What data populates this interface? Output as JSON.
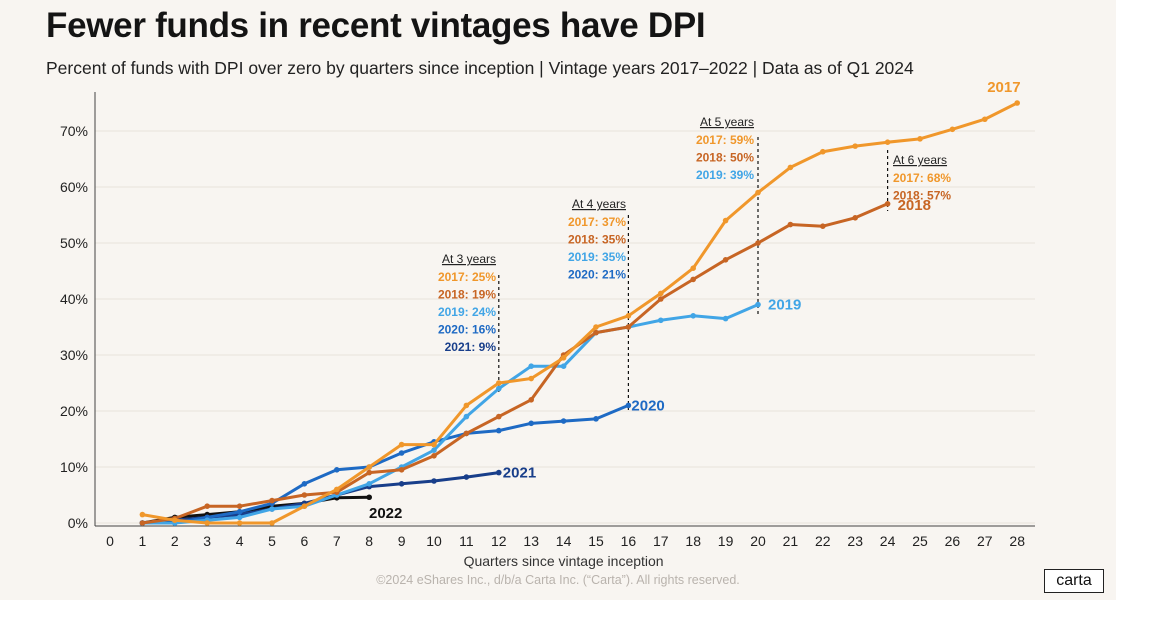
{
  "title": "Fewer funds in recent vintages have DPI",
  "subtitle": "Percent of funds with DPI over zero by quarters since inception | Vintage years 2017–2022 | Data as of Q1 2024",
  "footer": "©2024 eShares Inc., d/b/a Carta Inc. (“Carta”). All rights reserved.",
  "logo": "carta",
  "colors": {
    "2017": "#f0972b",
    "2018": "#c76524",
    "2019": "#41a5e6",
    "2020": "#1e6ac4",
    "2021": "#183e8a",
    "2022": "#111111",
    "background": "#f8f5f1",
    "grid": "#e9e3dc"
  },
  "chart_data": {
    "type": "line",
    "xlabel": "Quarters since vintage inception",
    "ylabel": "",
    "xlim": [
      0,
      28
    ],
    "ylim": [
      0,
      75
    ],
    "x_ticks": [
      "0",
      "1",
      "2",
      "3",
      "4",
      "5",
      "6",
      "7",
      "8",
      "9",
      "10",
      "11",
      "12",
      "13",
      "14",
      "15",
      "16",
      "17",
      "18",
      "19",
      "20",
      "21",
      "22",
      "23",
      "24",
      "25",
      "26",
      "27",
      "28"
    ],
    "y_ticks": [
      {
        "value": 0,
        "label": "0%"
      },
      {
        "value": 10,
        "label": "10%"
      },
      {
        "value": 20,
        "label": "20%"
      },
      {
        "value": 30,
        "label": "30%"
      },
      {
        "value": 40,
        "label": "40%"
      },
      {
        "value": 50,
        "label": "50%"
      },
      {
        "value": 60,
        "label": "60%"
      },
      {
        "value": 70,
        "label": "70%"
      }
    ],
    "grid": true,
    "series": [
      {
        "name": "2017",
        "color": "#f0972b",
        "x": [
          1,
          2,
          3,
          4,
          5,
          6,
          7,
          8,
          9,
          10,
          11,
          12,
          13,
          14,
          15,
          16,
          17,
          18,
          19,
          20,
          21,
          22,
          23,
          24,
          25,
          26,
          27,
          28
        ],
        "values": [
          1.5,
          0.5,
          0,
          0,
          0,
          3,
          6,
          10,
          14,
          14,
          21,
          25,
          25.8,
          29.5,
          35,
          37,
          41,
          45.5,
          54,
          59,
          63.5,
          66.3,
          67.3,
          68,
          68.6,
          70.3,
          72.1,
          75
        ]
      },
      {
        "name": "2018",
        "color": "#c76524",
        "x": [
          1,
          2,
          3,
          4,
          5,
          6,
          7,
          8,
          9,
          10,
          11,
          12,
          13,
          14,
          15,
          16,
          17,
          18,
          19,
          20,
          21,
          22,
          23,
          24
        ],
        "values": [
          0,
          0.8,
          3,
          3,
          4,
          5,
          5.5,
          9,
          9.5,
          12,
          16,
          19,
          22,
          30,
          34,
          35,
          40,
          43.5,
          47,
          50,
          53.3,
          53,
          54.5,
          57
        ]
      },
      {
        "name": "2019",
        "color": "#41a5e6",
        "x": [
          1,
          2,
          3,
          4,
          5,
          6,
          7,
          8,
          9,
          10,
          11,
          12,
          13,
          14,
          15,
          16,
          17,
          18,
          19,
          20
        ],
        "values": [
          0,
          0,
          0.5,
          1,
          2.5,
          3,
          5,
          7,
          10,
          13,
          19,
          24,
          28,
          28,
          34,
          35,
          36.2,
          37,
          36.5,
          39
        ]
      },
      {
        "name": "2020",
        "color": "#1e6ac4",
        "x": [
          1,
          2,
          3,
          4,
          5,
          6,
          7,
          8,
          9,
          10,
          11,
          12,
          13,
          14,
          15,
          16
        ],
        "values": [
          0,
          0,
          1,
          2,
          3.5,
          7,
          9.5,
          10,
          12.5,
          14.5,
          16,
          16.5,
          17.8,
          18.2,
          18.6,
          21
        ]
      },
      {
        "name": "2021",
        "color": "#183e8a",
        "x": [
          1,
          2,
          3,
          4,
          5,
          6,
          7,
          8,
          9,
          10,
          11,
          12
        ],
        "values": [
          0,
          0.5,
          1,
          1.5,
          2.5,
          3.5,
          5,
          6.5,
          7,
          7.5,
          8.2,
          9
        ]
      },
      {
        "name": "2022",
        "color": "#111111",
        "x": [
          1,
          2,
          3,
          4,
          5,
          6,
          7,
          8
        ],
        "values": [
          0,
          1,
          1.5,
          2,
          3,
          3.5,
          4.5,
          4.6
        ]
      }
    ],
    "series_labels": [
      "2017",
      "2018",
      "2019",
      "2020",
      "2021",
      "2022"
    ],
    "annotations": [
      {
        "x": 12,
        "heading": "At 3 years",
        "lines": [
          {
            "text": "2017: 25%",
            "series": "2017"
          },
          {
            "text": "2018: 19%",
            "series": "2018"
          },
          {
            "text": "2019: 24%",
            "series": "2019"
          },
          {
            "text": "2020: 16%",
            "series": "2020"
          },
          {
            "text": "2021: 9%",
            "series": "2021"
          }
        ]
      },
      {
        "x": 16,
        "heading": "At 4 years",
        "lines": [
          {
            "text": "2017: 37%",
            "series": "2017"
          },
          {
            "text": "2018: 35%",
            "series": "2018"
          },
          {
            "text": "2019: 35%",
            "series": "2019"
          },
          {
            "text": "2020: 21%",
            "series": "2020"
          }
        ]
      },
      {
        "x": 20,
        "heading": "At 5 years",
        "lines": [
          {
            "text": "2017: 59%",
            "series": "2017"
          },
          {
            "text": "2018: 50%",
            "series": "2018"
          },
          {
            "text": "2019: 39%",
            "series": "2019"
          }
        ]
      },
      {
        "x": 24,
        "heading": "At 6 years",
        "lines": [
          {
            "text": "2017: 68%",
            "series": "2017"
          },
          {
            "text": "2018: 57%",
            "series": "2018"
          }
        ]
      }
    ]
  }
}
